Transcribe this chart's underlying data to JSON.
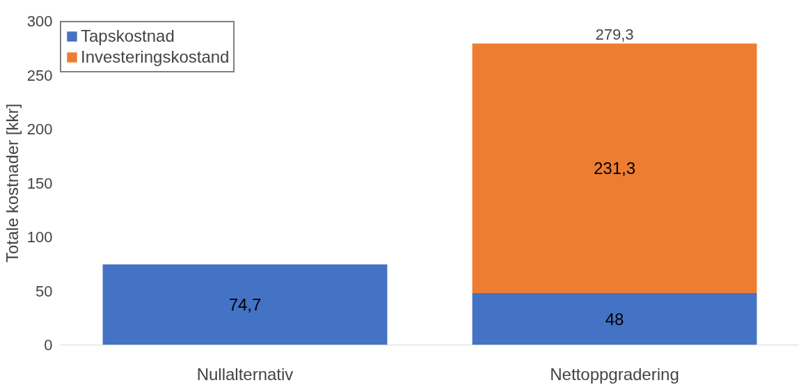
{
  "chart_data": {
    "type": "bar",
    "stacked": true,
    "ylabel": "Totale kostnader [kkr]",
    "categories": [
      "Nullalternativ",
      "Nettoppgradering"
    ],
    "series": [
      {
        "name": "Tapskostnad",
        "color": "#4472c4",
        "values": [
          74.7,
          48
        ],
        "value_labels": [
          "74,7",
          "48"
        ]
      },
      {
        "name": "Investeringskostand",
        "color": "#ed7d31",
        "values": [
          null,
          231.3
        ],
        "value_labels": [
          null,
          "231,3"
        ]
      }
    ],
    "totals": [
      null,
      "279,3"
    ],
    "ylim": [
      0,
      300
    ],
    "yticks": [
      0,
      50,
      100,
      150,
      200,
      250,
      300
    ],
    "grid": false,
    "legend": "top left"
  }
}
